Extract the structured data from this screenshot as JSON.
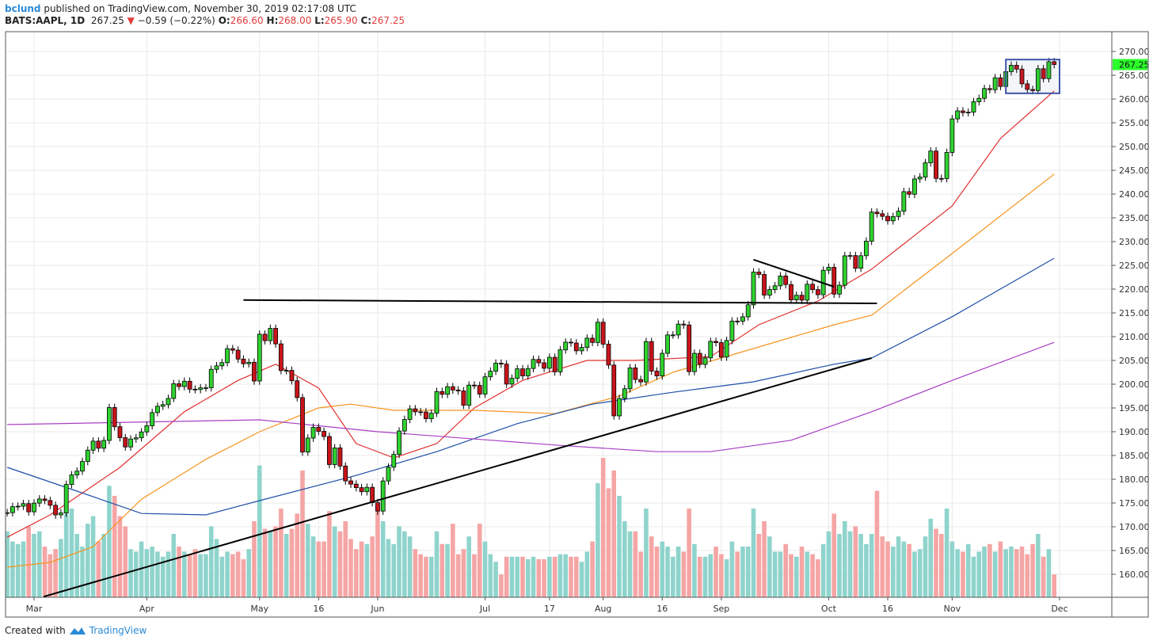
{
  "header": {
    "author": "bclund",
    "published_text": "published on TradingView.com, November 30, 2019 02:17:08 UTC",
    "symbol": "BATS:AAPL, 1D",
    "last": "267.25",
    "change": "−0.59 (−0.22%)",
    "o_label": "O:",
    "o": "266.60",
    "h_label": "H:",
    "h": "268.00",
    "l_label": "L:",
    "l": "265.90",
    "c_label": "C:",
    "c": "267.25"
  },
  "footer": {
    "created_with": "Created with",
    "brand": "TradingView"
  },
  "colors": {
    "up": "#2fd22f",
    "down": "#c9141a",
    "vol_up": "#8fd4cc",
    "vol_down": "#f5a5a5",
    "last_price_bg": "#2bff2b",
    "ma20": "#e0302f",
    "ma50": "#f7931e",
    "ma100": "#1f4fa8",
    "ma200": "#a73ec4",
    "box": "#3d55a8"
  },
  "chart_data": {
    "type": "candlestick",
    "title": "BATS:AAPL, 1D",
    "start_date": "2019-02-22",
    "end_date": "2019-11-29",
    "ylim": [
      155,
      272
    ],
    "y_ticks": [
      "270.00",
      "265.00",
      "260.00",
      "255.00",
      "250.00",
      "245.00",
      "240.00",
      "235.00",
      "230.00",
      "225.00",
      "220.00",
      "215.00",
      "210.00",
      "205.00",
      "200.00",
      "195.00",
      "190.00",
      "185.00",
      "180.00",
      "175.00",
      "170.00",
      "165.00",
      "160.00"
    ],
    "x_ticks": [
      {
        "label": "Mar",
        "bar": 5
      },
      {
        "label": "Apr",
        "bar": 26
      },
      {
        "label": "May",
        "bar": 47
      },
      {
        "label": "16",
        "bar": 58
      },
      {
        "label": "Jun",
        "bar": 69
      },
      {
        "label": "Jul",
        "bar": 89
      },
      {
        "label": "17",
        "bar": 101
      },
      {
        "label": "Aug",
        "bar": 111
      },
      {
        "label": "16",
        "bar": 122
      },
      {
        "label": "Sep",
        "bar": 133
      },
      {
        "label": "Oct",
        "bar": 153
      },
      {
        "label": "16",
        "bar": 164
      },
      {
        "label": "Nov",
        "bar": 176
      },
      {
        "label": "Dec",
        "bar": 196
      }
    ],
    "last_price_label": "267.25",
    "closes": [
      172.97,
      174.23,
      174.33,
      174.87,
      173.15,
      174.97,
      175.85,
      175.53,
      174.52,
      172.5,
      172.91,
      178.9,
      180.91,
      181.71,
      183.73,
      186.12,
      188.02,
      186.53,
      188.16,
      195.09,
      191.05,
      188.74,
      186.79,
      188.47,
      188.72,
      189.95,
      191.24,
      194.02,
      195.35,
      195.69,
      197.0,
      200.1,
      199.5,
      200.62,
      198.95,
      198.87,
      199.23,
      199.25,
      203.13,
      203.86,
      204.53,
      207.48,
      207.16,
      205.28,
      204.3,
      204.61,
      200.67,
      210.52,
      209.15,
      211.75,
      208.48,
      202.86,
      202.9,
      200.72,
      197.18,
      185.72,
      188.66,
      190.92,
      190.08,
      189.0,
      183.09,
      186.6,
      182.78,
      179.66,
      178.97,
      178.23,
      177.38,
      178.3,
      175.07,
      173.3,
      179.64,
      182.54,
      185.22,
      190.15,
      192.58,
      194.81,
      194.19,
      194.15,
      192.74,
      193.89,
      198.45,
      197.87,
      199.46,
      198.78,
      198.58,
      195.57,
      199.8,
      199.74,
      197.92,
      201.55,
      202.73,
      204.41,
      204.23,
      200.02,
      201.24,
      203.23,
      201.75,
      203.3,
      205.21,
      204.5,
      203.35,
      205.66,
      202.59,
      207.22,
      208.84,
      208.67,
      207.02,
      207.74,
      209.68,
      208.78,
      213.04,
      208.43,
      204.02,
      193.34,
      197.0,
      199.04,
      203.43,
      200.99,
      200.48,
      208.97,
      202.75,
      201.74,
      206.5,
      210.35,
      210.36,
      212.64,
      212.46,
      202.64,
      206.49,
      204.16,
      205.53,
      209.01,
      208.74,
      205.7,
      209.19,
      213.28,
      213.26,
      214.17,
      216.7,
      223.59,
      223.09,
      218.75,
      219.9,
      220.7,
      222.77,
      220.96,
      217.73,
      218.72,
      217.68,
      221.03,
      219.89,
      218.82,
      223.97,
      224.59,
      218.96,
      220.82,
      227.01,
      227.06,
      224.4,
      227.03,
      230.09,
      236.21,
      235.87,
      235.32,
      234.37,
      235.28,
      236.41,
      240.51,
      239.96,
      243.18,
      243.58,
      246.58,
      249.05,
      243.29,
      243.26,
      248.76,
      255.82,
      257.5,
      257.13,
      257.24,
      259.43,
      260.14,
      262.2,
      261.96,
      264.47,
      262.64,
      265.76,
      267.1,
      266.29,
      263.19,
      262.01,
      261.78,
      266.37,
      264.29,
      267.84,
      267.25
    ],
    "volumes_millions": [
      26,
      22,
      21,
      22,
      28,
      25,
      26,
      20,
      17,
      19,
      23,
      33,
      35,
      25,
      20,
      29,
      32,
      22,
      25,
      44,
      40,
      32,
      28,
      19,
      18,
      22,
      19,
      20,
      18,
      16,
      18,
      25,
      20,
      18,
      17,
      19,
      17,
      17,
      28,
      23,
      16,
      18,
      17,
      18,
      15,
      19,
      30,
      52,
      27,
      26,
      28,
      35,
      25,
      27,
      33,
      50,
      29,
      24,
      22,
      22,
      34,
      28,
      26,
      30,
      23,
      19,
      22,
      21,
      24,
      36,
      30,
      23,
      21,
      28,
      26,
      24,
      19,
      17,
      16,
      16,
      26,
      21,
      21,
      29,
      17,
      19,
      24,
      17,
      29,
      22,
      17,
      14,
      9,
      16,
      16,
      16,
      16,
      15,
      16,
      15,
      15,
      16,
      16,
      17,
      17,
      16,
      16,
      14,
      18,
      22,
      45,
      55,
      43,
      50,
      40,
      30,
      26,
      26,
      18,
      35,
      24,
      20,
      22,
      20,
      16,
      20,
      18,
      35,
      21,
      16,
      16,
      17,
      20,
      17,
      15,
      22,
      18,
      20,
      20,
      35,
      25,
      30,
      24,
      18,
      18,
      21,
      17,
      16,
      20,
      18,
      17,
      15,
      21,
      26,
      33,
      25,
      30,
      26,
      28,
      25,
      21,
      25,
      42,
      24,
      22,
      20,
      24,
      22,
      21,
      18,
      19,
      24,
      31,
      27,
      25,
      35,
      22,
      19,
      18,
      21,
      16,
      18,
      20,
      21,
      18,
      22,
      19,
      20,
      19,
      20,
      17,
      21,
      25,
      16,
      19,
      9
    ],
    "moving_averages": [
      {
        "name": "MA20",
        "color_key": "ma20",
        "points": [
          [
            0,
            167.8
          ],
          [
            8,
            172.5
          ],
          [
            21,
            182.5
          ],
          [
            33,
            194.2
          ],
          [
            43,
            200.8
          ],
          [
            50,
            204.2
          ],
          [
            58,
            199.2
          ],
          [
            65,
            187.5
          ],
          [
            72,
            184.5
          ],
          [
            80,
            187.5
          ],
          [
            87,
            195
          ],
          [
            96,
            200.8
          ],
          [
            108,
            205
          ],
          [
            117,
            205
          ],
          [
            131,
            205.8
          ],
          [
            140,
            212.5
          ],
          [
            151,
            217.5
          ],
          [
            161,
            224.2
          ],
          [
            176,
            237.5
          ],
          [
            185,
            251.7
          ],
          [
            195,
            261.7
          ]
        ]
      },
      {
        "name": "MA50",
        "color_key": "ma50",
        "points": [
          [
            0,
            161.5
          ],
          [
            8,
            162.5
          ],
          [
            16,
            165.8
          ],
          [
            25,
            175.8
          ],
          [
            37,
            184.2
          ],
          [
            47,
            190
          ],
          [
            58,
            195
          ],
          [
            64,
            195.8
          ],
          [
            72,
            194.5
          ],
          [
            87,
            194.5
          ],
          [
            102,
            193.8
          ],
          [
            114,
            197.5
          ],
          [
            124,
            202.5
          ],
          [
            139,
            207.5
          ],
          [
            154,
            212.5
          ],
          [
            161,
            214.5
          ],
          [
            176,
            227.5
          ],
          [
            195,
            244.2
          ]
        ]
      },
      {
        "name": "MA100",
        "color_key": "ma100",
        "points": [
          [
            0,
            182.5
          ],
          [
            13,
            177.5
          ],
          [
            25,
            172.8
          ],
          [
            37,
            172.5
          ],
          [
            47,
            175.5
          ],
          [
            65,
            180.8
          ],
          [
            80,
            185.8
          ],
          [
            95,
            191.7
          ],
          [
            109,
            195.8
          ],
          [
            124,
            198.3
          ],
          [
            139,
            200.5
          ],
          [
            154,
            204.2
          ],
          [
            161,
            205.5
          ],
          [
            176,
            214.2
          ],
          [
            195,
            226.5
          ]
        ]
      },
      {
        "name": "MA200",
        "color_key": "ma200",
        "points": [
          [
            0,
            191.5
          ],
          [
            47,
            192.5
          ],
          [
            69,
            190
          ],
          [
            102,
            187.2
          ],
          [
            121,
            185.8
          ],
          [
            131,
            185.8
          ],
          [
            146,
            188.2
          ],
          [
            161,
            194.2
          ],
          [
            176,
            200.8
          ],
          [
            195,
            208.8
          ]
        ]
      }
    ],
    "drawings": [
      {
        "name": "resistance-line",
        "from": [
          44,
          217.7
        ],
        "to": [
          162,
          217.0
        ]
      },
      {
        "name": "rising-trendline",
        "from": [
          6.8,
          155.3
        ],
        "to": [
          161,
          205.5
        ]
      },
      {
        "name": "pennant-upper-line",
        "from": [
          139,
          226.2
        ],
        "to": [
          154,
          220.5
        ]
      }
    ],
    "consolidation_box": {
      "bar_from": 186,
      "bar_to": 196,
      "price_high": 268.3,
      "price_low": 261.2
    }
  }
}
